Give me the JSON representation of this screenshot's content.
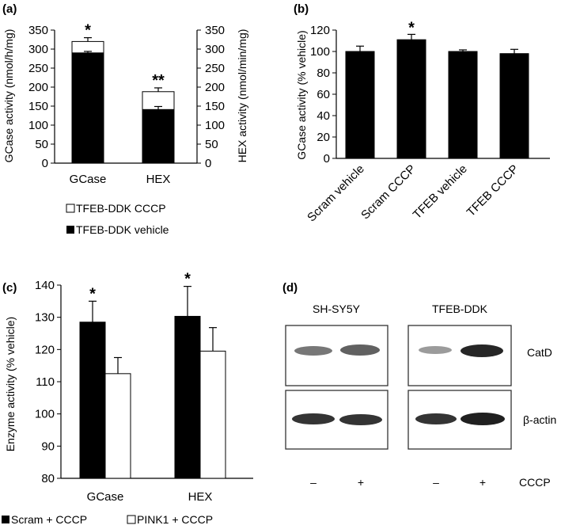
{
  "chart_data": [
    {
      "panel": "(a)",
      "type": "bar",
      "stacking": "overlay",
      "categories": [
        "GCase",
        "HEX"
      ],
      "ylabel": "GCase activity (nmol/h/mg)",
      "ylabel_right": "HEX activity (nmol/min/mg)",
      "ylim": [
        0,
        350
      ],
      "yticks": [
        0,
        50,
        100,
        150,
        200,
        250,
        300,
        350
      ],
      "series": [
        {
          "name": "TFEB-DDK CCCP",
          "color": "#ffffff",
          "values": [
            320,
            188
          ],
          "errors": [
            10,
            10
          ]
        },
        {
          "name": "TFEB-DDK vehicle",
          "color": "#000000",
          "values": [
            290,
            141
          ],
          "errors": [
            4,
            8
          ]
        }
      ],
      "significance": [
        "*",
        "**"
      ],
      "legend_position": "bottom"
    },
    {
      "panel": "(b)",
      "type": "bar",
      "categories": [
        "Scram vehicle",
        "Scram CCCP",
        "TFEB vehicle",
        "TFEB CCCP"
      ],
      "ylabel": "GCase activity (% vehicle)",
      "ylim": [
        0,
        120
      ],
      "yticks": [
        0,
        20,
        40,
        60,
        80,
        100,
        120
      ],
      "series": [
        {
          "color": "#000000",
          "values": [
            100,
            111,
            100,
            98
          ],
          "errors": [
            5,
            5,
            1.5,
            4
          ]
        }
      ],
      "significance": [
        "",
        "*",
        "",
        ""
      ]
    },
    {
      "panel": "(c)",
      "type": "bar",
      "categories": [
        "GCase",
        "HEX"
      ],
      "ylabel": "Enzyme activity (% vehicle)",
      "ylim": [
        80,
        140
      ],
      "yticks": [
        80,
        90,
        100,
        110,
        120,
        130,
        140
      ],
      "series": [
        {
          "name": "Scram + CCCP",
          "color": "#000000",
          "values": [
            128.5,
            130.3
          ],
          "errors": [
            6.5,
            9.3
          ]
        },
        {
          "name": "PINK1 + CCCP",
          "color": "#ffffff",
          "values": [
            112.5,
            119.5
          ],
          "errors": [
            5,
            7.3
          ]
        }
      ],
      "significance": [
        "*",
        "*"
      ],
      "legend_position": "bottom"
    }
  ],
  "blot": {
    "panel": "(d)",
    "groups": [
      "SH-SY5Y",
      "TFEB-DDK"
    ],
    "rows": [
      "CatD",
      "β-actin"
    ],
    "lane_labels": [
      "–",
      "+",
      "–",
      "+"
    ],
    "treatment": "CCCP"
  }
}
